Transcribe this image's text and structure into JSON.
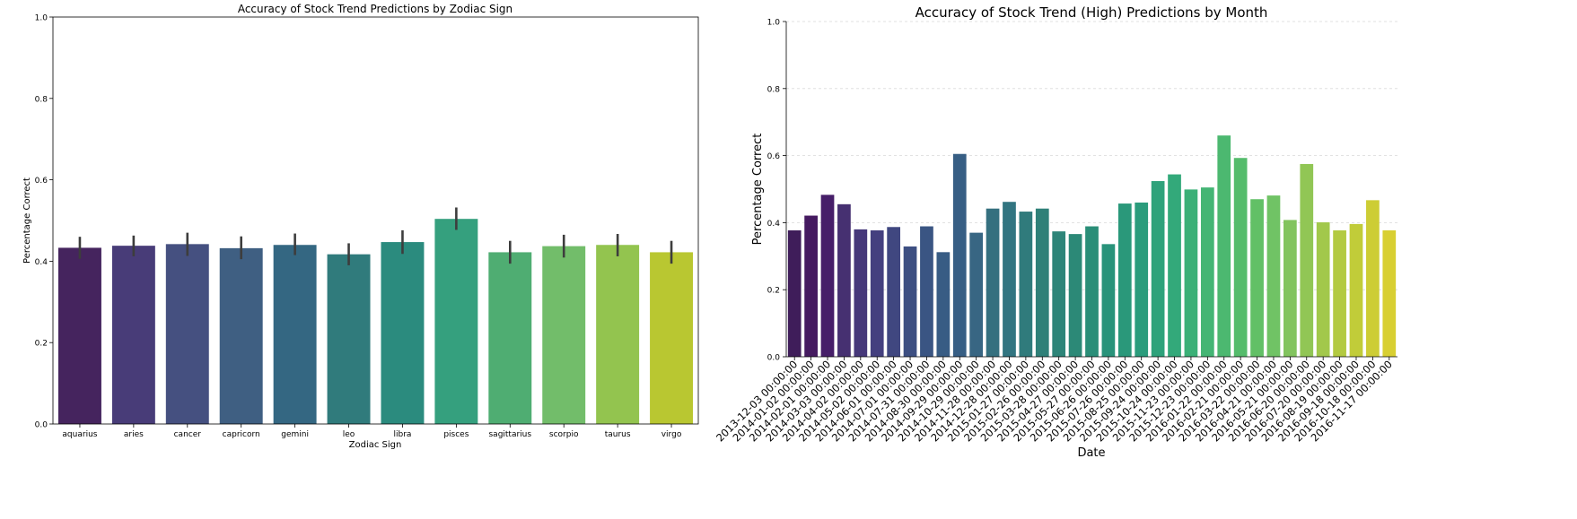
{
  "chart_data": [
    {
      "type": "bar",
      "title": "Accuracy of Stock Trend Predictions by Zodiac Sign",
      "xlabel": "Zodiac Sign",
      "ylabel": "Percentage Correct",
      "ylim": [
        0,
        1
      ],
      "yticks": [
        "0.0",
        "0.2",
        "0.4",
        "0.6",
        "0.8",
        "1.0"
      ],
      "grid": false,
      "categories": [
        "aquarius",
        "aries",
        "cancer",
        "capricorn",
        "gemini",
        "leo",
        "libra",
        "pisces",
        "sagittarius",
        "scorpio",
        "taurus",
        "virgo"
      ],
      "values": [
        0.433,
        0.438,
        0.442,
        0.432,
        0.44,
        0.417,
        0.447,
        0.504,
        0.422,
        0.437,
        0.44,
        0.422
      ],
      "error": [
        [
          0.406,
          0.46
        ],
        [
          0.412,
          0.463
        ],
        [
          0.413,
          0.47
        ],
        [
          0.405,
          0.461
        ],
        [
          0.415,
          0.468
        ],
        [
          0.39,
          0.444
        ],
        [
          0.418,
          0.476
        ],
        [
          0.477,
          0.532
        ],
        [
          0.394,
          0.45
        ],
        [
          0.409,
          0.465
        ],
        [
          0.412,
          0.467
        ],
        [
          0.394,
          0.45
        ]
      ],
      "colors": [
        "#45245e",
        "#483c78",
        "#455080",
        "#3f5f82",
        "#346782",
        "#307b7c",
        "#2b8b7e",
        "#35a07e",
        "#4fad72",
        "#72bd6a",
        "#93c44f",
        "#b9c731"
      ]
    },
    {
      "type": "bar",
      "title": "Accuracy of Stock Trend (High) Predictions by Month",
      "xlabel": "Date",
      "ylabel": "Percentage Correct",
      "ylim": [
        0,
        1
      ],
      "yticks": [
        "0.0",
        "0.2",
        "0.4",
        "0.6",
        "0.8",
        "1.0"
      ],
      "grid": true,
      "categories": [
        "2013-12-03 00:00:00",
        "2014-01-02 00:00:00",
        "2014-02-01 00:00:00",
        "2014-03-03 00:00:00",
        "2014-04-02 00:00:00",
        "2014-05-02 00:00:00",
        "2014-06-01 00:00:00",
        "2014-07-01 00:00:00",
        "2014-07-31 00:00:00",
        "2014-08-30 00:00:00",
        "2014-09-29 00:00:00",
        "2014-10-29 00:00:00",
        "2014-11-28 00:00:00",
        "2014-12-28 00:00:00",
        "2015-01-27 00:00:00",
        "2015-02-26 00:00:00",
        "2015-03-28 00:00:00",
        "2015-04-27 00:00:00",
        "2015-05-27 00:00:00",
        "2015-06-26 00:00:00",
        "2015-07-26 00:00:00",
        "2015-08-25 00:00:00",
        "2015-09-24 00:00:00",
        "2015-10-24 00:00:00",
        "2015-11-23 00:00:00",
        "2015-12-23 00:00:00",
        "2016-01-22 00:00:00",
        "2016-02-21 00:00:00",
        "2016-03-22 00:00:00",
        "2016-04-21 00:00:00",
        "2016-05-21 00:00:00",
        "2016-06-20 00:00:00",
        "2016-07-20 00:00:00",
        "2016-08-19 00:00:00",
        "2016-09-18 00:00:00",
        "2016-10-18 00:00:00",
        "2016-11-17 00:00:00"
      ],
      "values": [
        0.377,
        0.421,
        0.483,
        0.455,
        0.38,
        0.377,
        0.387,
        0.329,
        0.389,
        0.312,
        0.605,
        0.37,
        0.442,
        0.462,
        0.433,
        0.442,
        0.374,
        0.366,
        0.389,
        0.336,
        0.457,
        0.46,
        0.524,
        0.544,
        0.499,
        0.505,
        0.66,
        0.593,
        0.47,
        0.481,
        0.408,
        0.575,
        0.401,
        0.377,
        0.396,
        0.467,
        0.377
      ],
      "colors": [
        "#3f1d5a",
        "#451a60",
        "#461e69",
        "#463071",
        "#46387a",
        "#44407f",
        "#404780",
        "#3d4f82",
        "#3a5583",
        "#385c84",
        "#375e84",
        "#386683",
        "#35707f",
        "#327581",
        "#307b7c",
        "#2f8078",
        "#2e8579",
        "#2c8977",
        "#2a8e78",
        "#29937a",
        "#2a987a",
        "#2b9c7c",
        "#2ea27b",
        "#33a97a",
        "#3bb077",
        "#44b574",
        "#4cb870",
        "#55bc6c",
        "#62c066",
        "#70c365",
        "#82c45e",
        "#91c655",
        "#a2c84b",
        "#b3ca41",
        "#c1cc39",
        "#cdcd35",
        "#d8cf32"
      ]
    }
  ]
}
